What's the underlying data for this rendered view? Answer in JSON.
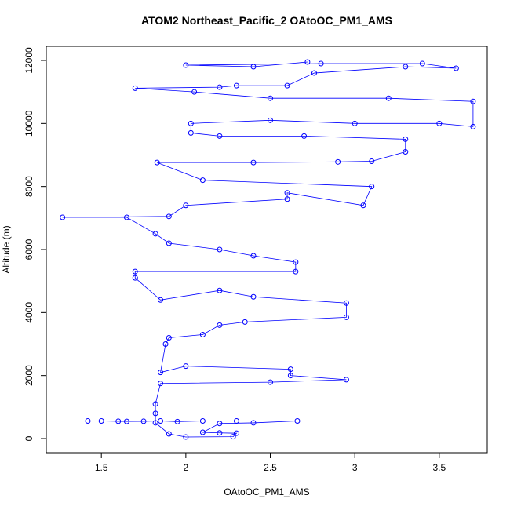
{
  "chart_data": {
    "type": "scatter",
    "title": "ATOM2 Northeast_Pacific_2 OAtoOC_PM1_AMS",
    "xlabel": "OAtoOC_PM1_AMS",
    "ylabel": "Altitude (m)",
    "xlim": [
      1.174,
      3.784
    ],
    "ylim": [
      -448,
      12448
    ],
    "xticks": [
      1.5,
      2.0,
      2.5,
      3.0,
      3.5
    ],
    "yticks": [
      0,
      2000,
      4000,
      6000,
      8000,
      10000,
      12000
    ],
    "color": "#0000ff",
    "lines": true,
    "x": [
      1.42,
      1.5,
      1.6,
      1.65,
      1.75,
      1.85,
      1.95,
      2.1,
      2.3,
      2.66,
      2.4,
      2.2,
      2.1,
      2.2,
      2.3,
      2.28,
      2.0,
      1.9,
      1.82,
      1.82,
      1.82,
      1.85,
      2.5,
      2.95,
      2.62,
      2.62,
      2.0,
      1.85,
      1.88,
      1.9,
      2.1,
      2.2,
      2.35,
      2.95,
      2.95,
      2.4,
      2.2,
      1.85,
      1.7,
      1.7,
      2.65,
      2.65,
      2.4,
      2.2,
      1.9,
      1.82,
      1.65,
      1.27,
      1.9,
      2.0,
      2.6,
      2.6,
      3.05,
      3.1,
      2.1,
      1.83,
      2.4,
      2.9,
      3.1,
      3.3,
      3.3,
      2.7,
      2.2,
      2.03,
      2.03,
      2.5,
      3.0,
      3.5,
      3.7,
      3.7,
      3.2,
      2.5,
      2.05,
      1.7,
      2.2,
      2.3,
      2.6,
      2.76,
      3.3,
      3.6,
      3.4,
      2.8,
      2.0,
      2.4,
      2.72
    ],
    "values": [
      560,
      560,
      550,
      545,
      550,
      560,
      540,
      560,
      560,
      560,
      500,
      480,
      200,
      180,
      170,
      60,
      50,
      150,
      500,
      800,
      1100,
      1750,
      1790,
      1870,
      2000,
      2200,
      2300,
      2100,
      3000,
      3200,
      3300,
      3600,
      3700,
      3850,
      4300,
      4500,
      4700,
      4400,
      5100,
      5300,
      5300,
      5600,
      5800,
      6000,
      6200,
      6500,
      7020,
      7020,
      7050,
      7400,
      7600,
      7800,
      7400,
      8000,
      8200,
      8760,
      8760,
      8780,
      8800,
      9100,
      9500,
      9600,
      9600,
      9700,
      10000,
      10100,
      10000,
      10000,
      9900,
      10700,
      10800,
      10800,
      11000,
      11120,
      11150,
      11200,
      11200,
      11600,
      11800,
      11750,
      11900,
      11900,
      11850,
      11800,
      11950
    ]
  }
}
